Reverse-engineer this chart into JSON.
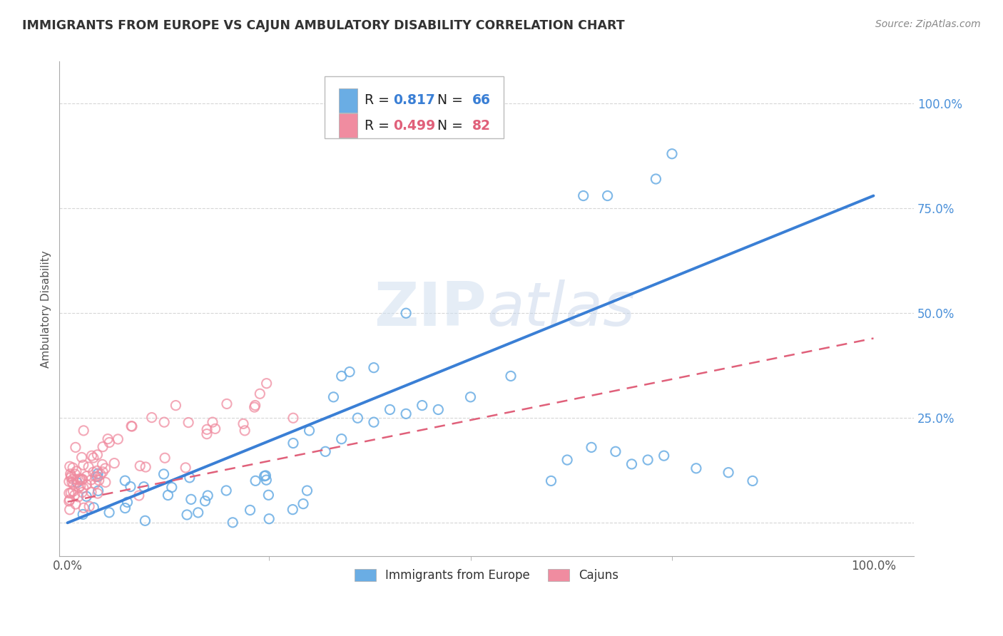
{
  "title": "IMMIGRANTS FROM EUROPE VS CAJUN AMBULATORY DISABILITY CORRELATION CHART",
  "source": "Source: ZipAtlas.com",
  "ylabel": "Ambulatory Disability",
  "legend_label1": "Immigrants from Europe",
  "legend_label2": "Cajuns",
  "r1": 0.817,
  "n1": 66,
  "r2": 0.499,
  "n2": 82,
  "color1": "#6aade4",
  "color2": "#f08ca0",
  "line1_color": "#3a7fd5",
  "line2_color": "#e0607a",
  "background": "#ffffff",
  "blue_line_x0": 0.0,
  "blue_line_y0": 0.0,
  "blue_line_x1": 1.0,
  "blue_line_y1": 0.78,
  "pink_line_x0": 0.0,
  "pink_line_y0": 0.05,
  "pink_line_x1": 1.0,
  "pink_line_y1": 0.44,
  "xlim_min": -0.01,
  "xlim_max": 1.05,
  "ylim_min": -0.08,
  "ylim_max": 1.1
}
